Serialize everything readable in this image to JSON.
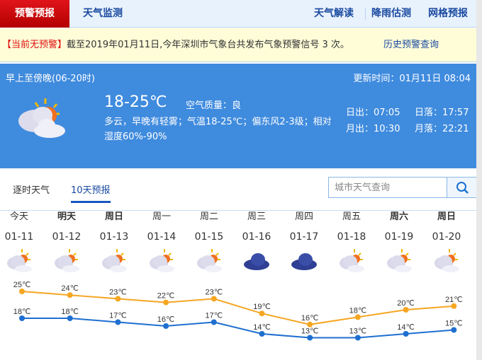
{
  "nav": {
    "active": "预警预报",
    "monitor": "天气监测",
    "links": [
      "天气解读",
      "降雨估测",
      "网格预报"
    ]
  },
  "warning": {
    "status": "【当前无预警】",
    "text": "截至2019年01月11日,今年深圳市气象台共发布气象预警信号 3 次。",
    "history": "历史预警查询"
  },
  "current": {
    "period": "早上至傍晚(06-20时)",
    "updated": "更新时间：01月11日 08:04",
    "temp": "18-25℃",
    "aqi": "空气质量：良",
    "desc": "多云，早晚有轻雾；气温18-25℃；偏东风2-3级；相对湿度60%-90%",
    "sunrise": "日出：07:05",
    "sunset": "日落：17:57",
    "moonrise": "月出：10:30",
    "moonset": "月落：22:21",
    "icon": "partly-cloudy-icon"
  },
  "tabs": [
    "逐时天气",
    "10天预报"
  ],
  "search": {
    "placeholder": "城市天气查询",
    "icon": "search-icon"
  },
  "days": [
    {
      "w": "今天",
      "d": "01-11",
      "icon": "partly-cloudy",
      "bold": false
    },
    {
      "w": "明天",
      "d": "01-12",
      "icon": "partly-cloudy",
      "bold": true
    },
    {
      "w": "周日",
      "d": "01-13",
      "icon": "partly-cloudy",
      "bold": true
    },
    {
      "w": "周一",
      "d": "01-14",
      "icon": "partly-cloudy",
      "bold": false
    },
    {
      "w": "周二",
      "d": "01-15",
      "icon": "partly-cloudy",
      "bold": false
    },
    {
      "w": "周三",
      "d": "01-16",
      "icon": "overcast",
      "bold": false
    },
    {
      "w": "周四",
      "d": "01-17",
      "icon": "overcast",
      "bold": false
    },
    {
      "w": "周五",
      "d": "01-18",
      "icon": "partly-cloudy",
      "bold": false
    },
    {
      "w": "周六",
      "d": "01-19",
      "icon": "partly-cloudy",
      "bold": true
    },
    {
      "w": "周日",
      "d": "01-20",
      "icon": "partly-cloudy",
      "bold": true
    }
  ],
  "chart_data": {
    "type": "line",
    "categories": [
      "01-11",
      "01-12",
      "01-13",
      "01-14",
      "01-15",
      "01-16",
      "01-17",
      "01-18",
      "01-19",
      "01-20"
    ],
    "unit": "℃",
    "series": [
      {
        "values": [
          25,
          24,
          23,
          22,
          23,
          19,
          16,
          18,
          20,
          21
        ],
        "color": "#f5a623"
      },
      {
        "values": [
          18,
          18,
          17,
          16,
          17,
          14,
          13,
          13,
          14,
          15
        ],
        "color": "#1f6fd0"
      }
    ]
  }
}
